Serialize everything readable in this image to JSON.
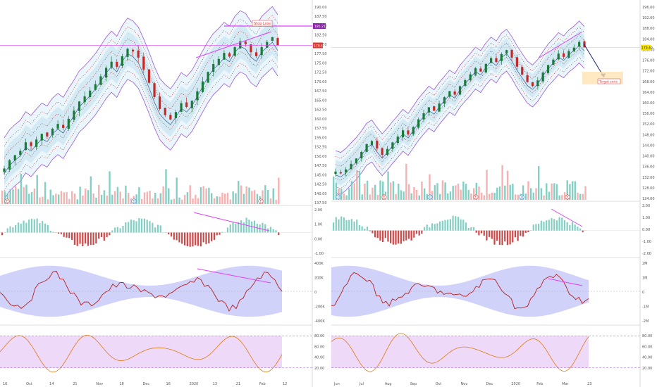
{
  "chart_data": [
    {
      "type": "candlestick",
      "name_on_chart": "",
      "price_axis_ticks": [
        "190.00",
        "187.50",
        "185.00",
        "182.50",
        "180.00",
        "177.50",
        "175.00",
        "172.50",
        "170.00",
        "167.50",
        "165.00",
        "162.50",
        "160.00",
        "157.50",
        "155.00",
        "152.50",
        "150.00",
        "147.50",
        "145.00",
        "142.50",
        "140.00",
        "137.50"
      ],
      "price_range": [
        137.5,
        191.5
      ],
      "close_series": [
        143.2,
        145.6,
        147.1,
        148.4,
        150.9,
        149.8,
        151.7,
        153.4,
        152.6,
        154.9,
        156.3,
        155.1,
        157.8,
        160.2,
        162.9,
        164.4,
        166.1,
        168.0,
        170.3,
        172.8,
        174.6,
        173.1,
        176.2,
        178.4,
        177.6,
        175.8,
        172.3,
        168.4,
        164.2,
        160.7,
        158.9,
        157.6,
        159.8,
        162.4,
        161.3,
        163.1,
        165.9,
        168.8,
        171.6,
        173.9,
        175.4,
        177.2,
        176.1,
        178.9,
        180.6,
        179.8,
        177.4,
        176.2,
        178.9,
        180.4,
        181.8,
        179.4
      ],
      "stop_loss_label": "Stop Loss",
      "stop_loss_value": "185.21",
      "last_price_label": "179.40",
      "time_axis_labels": [
        "16",
        "Oct",
        "14",
        "21",
        "Nov",
        "18",
        "Dec",
        "16",
        "2020",
        "13",
        "21",
        "Feb",
        "12"
      ],
      "event_markers": [
        "E",
        "D",
        "E"
      ],
      "macd_ticks": [
        "2.00",
        "1.00",
        "0.00",
        "-1.00"
      ],
      "oscillator_ticks": [
        "400K",
        "200K",
        "0",
        "-200K",
        "-400K"
      ],
      "rsi_ticks": [
        "80.00",
        "60.00",
        "40.00",
        "20.00"
      ]
    },
    {
      "type": "candlestick",
      "price_axis_ticks": [
        "196.00",
        "192.00",
        "188.00",
        "184.00",
        "180.00",
        "176.00",
        "172.00",
        "168.00",
        "164.00",
        "160.00",
        "156.00",
        "152.00",
        "148.00",
        "144.00",
        "140.00",
        "136.00",
        "132.00",
        "128.00",
        "124.00"
      ],
      "price_range": [
        121,
        198
      ],
      "close_series": [
        126.2,
        125.4,
        127.1,
        129.5,
        131.8,
        134.6,
        137.9,
        139.3,
        136.1,
        133.4,
        135.9,
        138.7,
        141.2,
        143.9,
        142.1,
        145.3,
        148.6,
        151.2,
        153.8,
        152.3,
        155.4,
        158.1,
        160.7,
        159.2,
        162.8,
        165.4,
        167.9,
        170.6,
        169.1,
        172.4,
        174.9,
        173.2,
        176.6,
        178.3,
        175.1,
        171.2,
        167.8,
        164.6,
        162.9,
        165.3,
        168.7,
        171.9,
        174.2,
        176.8,
        175.4,
        177.9,
        179.6,
        181.8,
        179.4
      ],
      "last_price_label": "179.40",
      "target_label": "Target zone",
      "time_axis_labels": [
        "Jun",
        "Jul",
        "Aug",
        "Sep",
        "Oct",
        "Nov",
        "Dec",
        "2020",
        "Feb",
        "Mar",
        "23"
      ],
      "event_markers": [
        "D",
        "E",
        "D",
        "E",
        "D",
        "E"
      ],
      "macd_ticks": [
        "2.00",
        "1.00",
        "0.00",
        "-1.00",
        "-2.00"
      ],
      "oscillator_ticks": [
        "2M",
        "1M",
        "0",
        "-1M",
        "-2M"
      ],
      "rsi_ticks": [
        "80.00",
        "60.00",
        "40.00",
        "20.00"
      ]
    }
  ],
  "colors": {
    "up": "#1b7a3a",
    "down": "#c62828",
    "band_fill": "#d9eef7",
    "band_line": "#9b59d6",
    "annotation": "#e040fb",
    "target_arrow": "#1a237e",
    "rsi_fill": "#e7c9f5",
    "volume_up": "#6fc7b8",
    "volume_down": "#f4a3a3",
    "oscillator_band": "#7c7ff0"
  }
}
